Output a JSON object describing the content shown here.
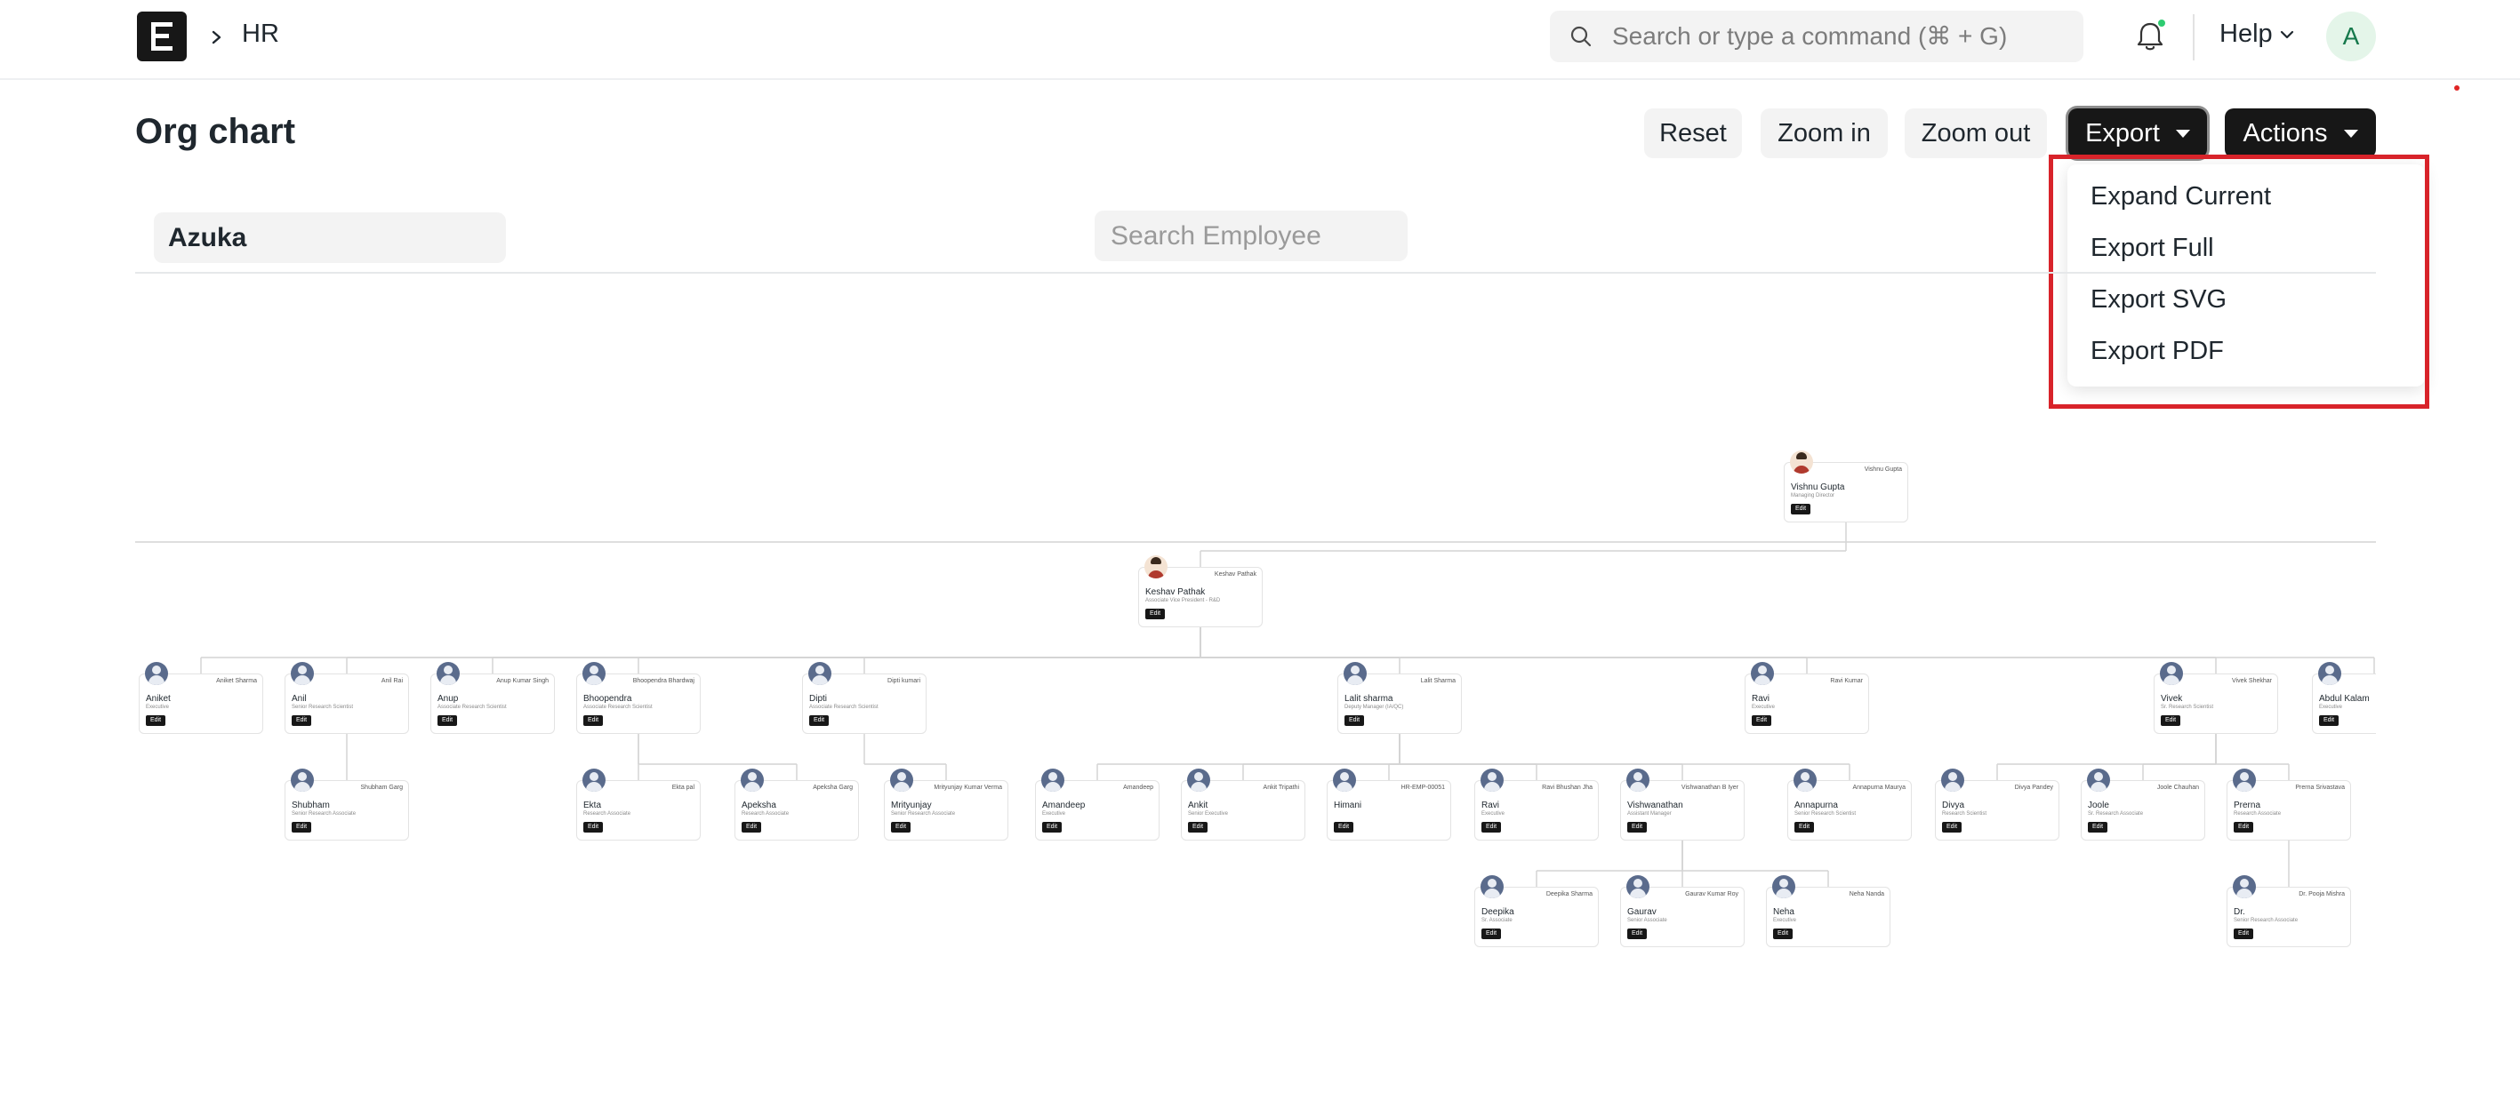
{
  "navbar": {
    "breadcrumb": "HR",
    "search_placeholder": "Search or type a command (⌘ + G)",
    "help_label": "Help",
    "avatar_initial": "A"
  },
  "page": {
    "title": "Org chart",
    "buttons": {
      "reset": "Reset",
      "zoom_in": "Zoom in",
      "zoom_out": "Zoom out",
      "export": "Export",
      "actions": "Actions"
    },
    "export_menu": [
      "Expand Current",
      "Export Full",
      "Export SVG",
      "Export PDF"
    ]
  },
  "filters": {
    "company": "Azuka",
    "employee_search_placeholder": "Search Employee"
  },
  "org": {
    "root": {
      "first_name": "Vishnu Gupta",
      "full_name": "Vishnu Gupta",
      "designation": "Managing Director",
      "photo": true
    },
    "level1": [
      {
        "first_name": "Keshav Pathak",
        "full_name": "Keshav Pathak",
        "designation": "Associate Vice President - R&D",
        "photo": true
      }
    ],
    "level2": [
      {
        "first_name": "Aniket",
        "full_name": "Aniket Sharma",
        "designation": "Executive"
      },
      {
        "first_name": "Anil",
        "full_name": "Anil Rai",
        "designation": "Senior Research Scientist"
      },
      {
        "first_name": "Anup",
        "full_name": "Anup Kumar Singh",
        "designation": "Associate Research Scientist"
      },
      {
        "first_name": "Bhoopendra",
        "full_name": "Bhoopendra Bhardwaj",
        "designation": "Associate Research Scientist"
      },
      {
        "first_name": "Dipti",
        "full_name": "Dipti kumari",
        "designation": "Associate Research Scientist"
      },
      {
        "first_name": "Lalit sharma",
        "full_name": "Lalit Sharma",
        "designation": "Deputy Manager (IA/QC)"
      },
      {
        "first_name": "Ravi",
        "full_name": "Ravi Kumar",
        "designation": "Executive"
      },
      {
        "first_name": "Vivek",
        "full_name": "Vivek Shekhar",
        "designation": "Sr. Research Scientist"
      },
      {
        "first_name": "Abdul Kalam",
        "full_name": "",
        "designation": "Executive"
      }
    ],
    "level3": [
      {
        "first_name": "Shubham",
        "full_name": "Shubham Garg",
        "designation": "Senior Research Associate"
      },
      {
        "first_name": "Ekta",
        "full_name": "Ekta pal",
        "designation": "Research Associate"
      },
      {
        "first_name": "Apeksha",
        "full_name": "Apeksha Garg",
        "designation": "Research Associate"
      },
      {
        "first_name": "Mrityunjay",
        "full_name": "Mrityunjay Kumar Verma",
        "designation": "Senior Research Associate"
      },
      {
        "first_name": "Amandeep",
        "full_name": "Amandeep",
        "designation": "Executive"
      },
      {
        "first_name": "Ankit",
        "full_name": "Ankit Tripathi",
        "designation": "Senior Executive"
      },
      {
        "first_name": "Himani",
        "full_name": "HR-EMP-00051",
        "designation": ""
      },
      {
        "first_name": "Ravi",
        "full_name": "Ravi Bhushan Jha",
        "designation": "Executive"
      },
      {
        "first_name": "Vishwanathan",
        "full_name": "Vishwanathan B Iyer",
        "designation": "Assistant Manager"
      },
      {
        "first_name": "Annapurna",
        "full_name": "Annapurna Maurya",
        "designation": "Senior Research Scientist"
      },
      {
        "first_name": "Divya",
        "full_name": "Divya Pandey",
        "designation": "Research Scientist"
      },
      {
        "first_name": "Joole",
        "full_name": "Joole Chauhan",
        "designation": "Sr. Research Associate"
      },
      {
        "first_name": "Prerna",
        "full_name": "Prerna Srivastava",
        "designation": "Research Associate"
      }
    ],
    "level4": [
      {
        "first_name": "Deepika",
        "full_name": "Deepika Sharma",
        "designation": "Sr. Associate"
      },
      {
        "first_name": "Gaurav",
        "full_name": "Gaurav Kumar Roy",
        "designation": "Senior Associate"
      },
      {
        "first_name": "Neha",
        "full_name": "Neha Nanda",
        "designation": "Executive"
      },
      {
        "first_name": "Dr.",
        "full_name": "Dr. Pooja Mishra",
        "designation": "Senior Research Associate"
      }
    ],
    "edit_label": "Edit"
  }
}
